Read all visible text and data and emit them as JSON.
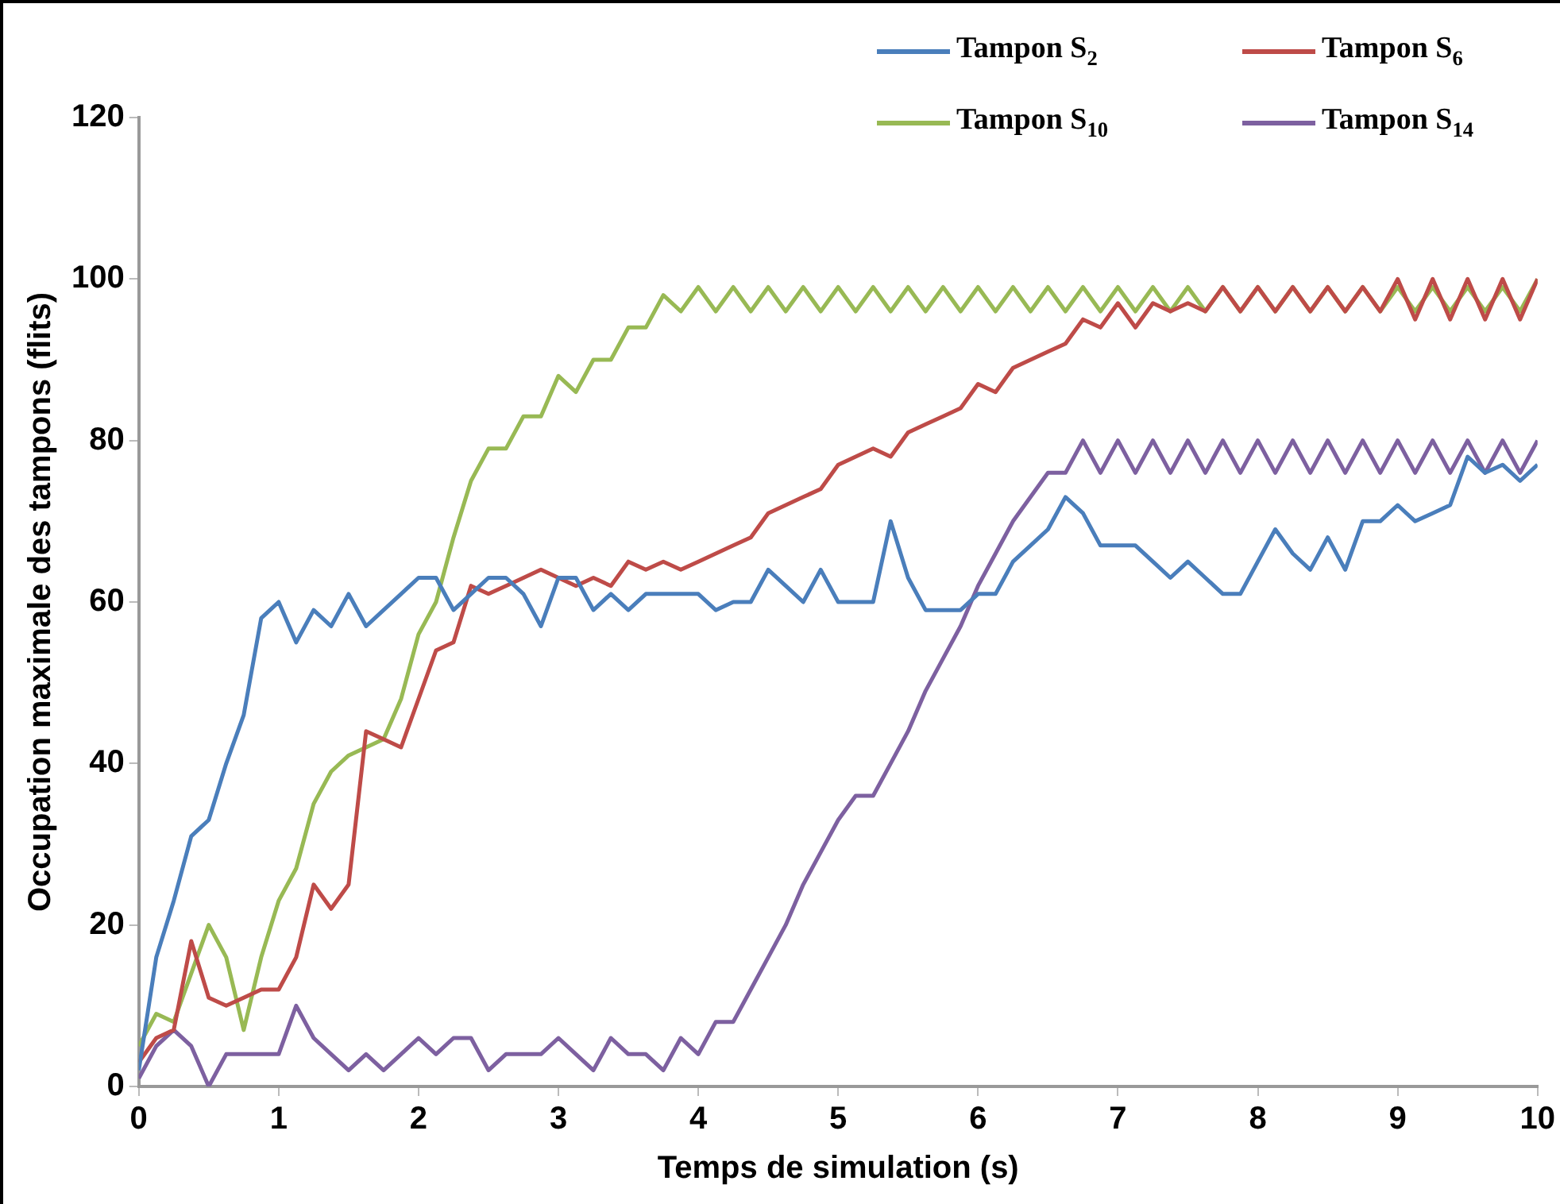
{
  "chart_data": {
    "type": "line",
    "xlabel": "Temps de simulation (s)",
    "ylabel": "Occupation maximale des tampons (flits)",
    "x": [
      0,
      0.125,
      0.25,
      0.375,
      0.5,
      0.625,
      0.75,
      0.875,
      1,
      1.125,
      1.25,
      1.375,
      1.5,
      1.625,
      1.75,
      1.875,
      2,
      2.125,
      2.25,
      2.375,
      2.5,
      2.625,
      2.75,
      2.875,
      3,
      3.125,
      3.25,
      3.375,
      3.5,
      3.625,
      3.75,
      3.875,
      4,
      4.125,
      4.25,
      4.375,
      4.5,
      4.625,
      4.75,
      4.875,
      5,
      5.125,
      5.25,
      5.375,
      5.5,
      5.625,
      5.75,
      5.875,
      6,
      6.125,
      6.25,
      6.375,
      6.5,
      6.625,
      6.75,
      6.875,
      7,
      7.125,
      7.25,
      7.375,
      7.5,
      7.625,
      7.75,
      7.875,
      8,
      8.125,
      8.25,
      8.375,
      8.5,
      8.625,
      8.75,
      8.875,
      9,
      9.125,
      9.25,
      9.375,
      9.5,
      9.625,
      9.75,
      9.875,
      10
    ],
    "series": [
      {
        "name": "Tampon S$_{2}$",
        "color": "#4a7ebb",
        "values": [
          2,
          16,
          23,
          31,
          33,
          40,
          46,
          58,
          60,
          55,
          59,
          57,
          61,
          57,
          59,
          61,
          63,
          63,
          59,
          61,
          63,
          63,
          61,
          57,
          63,
          63,
          59,
          61,
          59,
          61,
          61,
          61,
          61,
          59,
          60,
          60,
          64,
          62,
          60,
          64,
          60,
          60,
          60,
          70,
          63,
          59,
          59,
          59,
          61,
          61,
          65,
          67,
          69,
          73,
          71,
          67,
          67,
          67,
          65,
          63,
          65,
          63,
          61,
          61,
          65,
          69,
          66,
          64,
          68,
          64,
          70,
          70,
          72,
          70,
          71,
          72,
          78,
          76,
          77,
          75,
          77
        ]
      },
      {
        "name": "Tampon S$_{6}$",
        "color": "#be4b48",
        "values": [
          3,
          6,
          7,
          18,
          11,
          10,
          11,
          12,
          12,
          16,
          25,
          22,
          25,
          44,
          43,
          42,
          48,
          54,
          55,
          62,
          61,
          62,
          63,
          64,
          63,
          62,
          63,
          62,
          65,
          64,
          65,
          64,
          65,
          66,
          67,
          68,
          71,
          72,
          73,
          74,
          77,
          78,
          79,
          78,
          81,
          82,
          83,
          84,
          87,
          86,
          89,
          90,
          91,
          92,
          95,
          94,
          97,
          94,
          97,
          96,
          97,
          96,
          99,
          96,
          99,
          96,
          99,
          96,
          99,
          96,
          99,
          96,
          100,
          95,
          100,
          95,
          100,
          95,
          100,
          95,
          100
        ]
      },
      {
        "name": "Tampon S$_{10}$",
        "color": "#98b954",
        "values": [
          5,
          9,
          8,
          14,
          20,
          16,
          7,
          16,
          23,
          27,
          35,
          39,
          41,
          42,
          43,
          48,
          56,
          60,
          68,
          75,
          79,
          79,
          83,
          83,
          88,
          86,
          90,
          90,
          94,
          94,
          98,
          96,
          99,
          96,
          99,
          96,
          99,
          96,
          99,
          96,
          99,
          96,
          99,
          96,
          99,
          96,
          99,
          96,
          99,
          96,
          99,
          96,
          99,
          96,
          99,
          96,
          99,
          96,
          99,
          96,
          99,
          96,
          99,
          96,
          99,
          96,
          99,
          96,
          99,
          96,
          99,
          96,
          99,
          96,
          99,
          96,
          99,
          96,
          99,
          96,
          100
        ]
      },
      {
        "name": "Tampon S$_{14}$",
        "color": "#7d60a0",
        "values": [
          1,
          5,
          7,
          5,
          0,
          4,
          4,
          4,
          4,
          10,
          6,
          4,
          2,
          4,
          2,
          4,
          6,
          4,
          6,
          6,
          2,
          4,
          4,
          4,
          6,
          4,
          2,
          6,
          4,
          4,
          2,
          6,
          4,
          8,
          8,
          12,
          16,
          20,
          25,
          29,
          33,
          36,
          36,
          40,
          44,
          49,
          53,
          57,
          62,
          66,
          70,
          73,
          76,
          76,
          80,
          76,
          80,
          76,
          80,
          76,
          80,
          76,
          80,
          76,
          80,
          76,
          80,
          76,
          80,
          76,
          80,
          76,
          80,
          76,
          80,
          76,
          80,
          76,
          80,
          76,
          80
        ]
      }
    ],
    "xlim": [
      0,
      10
    ],
    "xticks": [
      0,
      1,
      2,
      3,
      4,
      5,
      6,
      7,
      8,
      9,
      10
    ],
    "ylim": [
      0,
      120
    ],
    "yticks": [
      0,
      20,
      40,
      60,
      80,
      100,
      120
    ],
    "grid": false,
    "legend": "top right",
    "marker": "none",
    "line_style": "solid"
  }
}
